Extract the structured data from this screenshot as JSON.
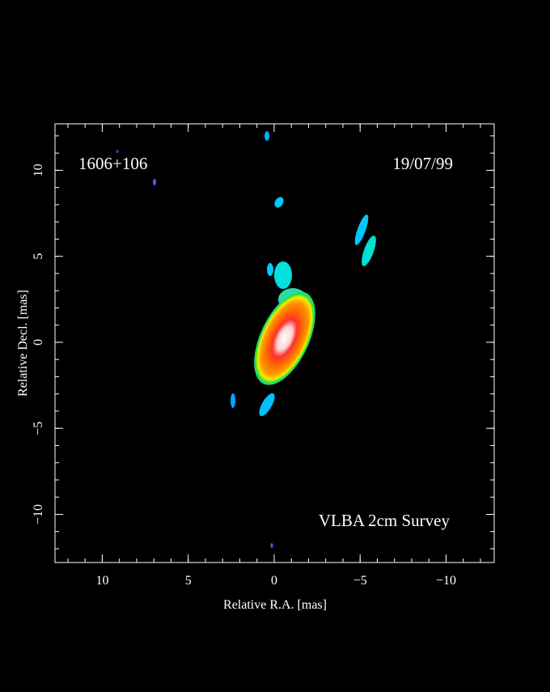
{
  "chart_data": {
    "type": "image",
    "title": "1606+106",
    "date": "19/07/99",
    "annotation": "VLBA 2cm Survey",
    "xlabel": "Relative R.A. [mas]",
    "ylabel": "Relative Decl. [mas]",
    "xlim": [
      12.75,
      -12.8
    ],
    "ylim": [
      -12.8,
      12.7
    ],
    "xticks": [
      10,
      5,
      0,
      {
        "value": -5,
        "label": "−5"
      },
      {
        "value": -10,
        "label": "−10"
      }
    ],
    "yticks": [
      {
        "value": -10,
        "label": "−10"
      },
      {
        "value": -5,
        "label": "−5"
      },
      0,
      5,
      10
    ]
  }
}
